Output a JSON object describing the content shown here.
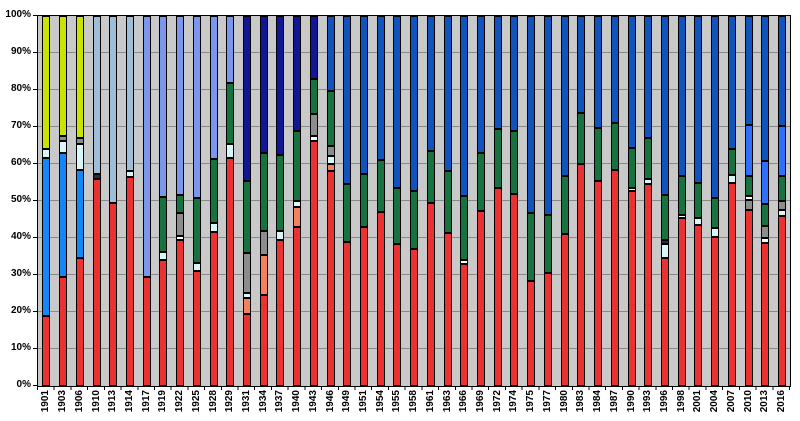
{
  "chart_data": {
    "type": "bar",
    "subtype": "stacked-100-percent-column",
    "title": "",
    "xlabel": "",
    "ylabel": "",
    "ylim": [
      0,
      100
    ],
    "grid": true,
    "legend": "none",
    "y_tick_labels": [
      "0%",
      "10%",
      "20%",
      "30%",
      "40%",
      "50%",
      "60%",
      "70%",
      "80%",
      "90%",
      "100%"
    ],
    "palette": {
      "alp": "#E93231",
      "lng": "#F2815C",
      "ind": "#D9F6F8",
      "wht": "#FFFFFF",
      "oth": "#8C8C8C",
      "drk": "#2B2B45",
      "prot": "#C8E400",
      "ft": "#1486F8",
      "cl": "#9DBED6",
      "nat": "#7A97EE",
      "uap": "#111695",
      "cp": "#177240",
      "lib": "#1153BE",
      "lnp": "#2E6FFB"
    },
    "plot_background": "#C9C9C9",
    "gridline_color": "#8a8a8a",
    "categories": [
      "1901",
      "1903",
      "1906",
      "1910",
      "1913",
      "1914",
      "1917",
      "1919",
      "1922",
      "1925",
      "1928",
      "1929",
      "1931",
      "1934",
      "1937",
      "1940",
      "1943",
      "1946",
      "1949",
      "1951",
      "1954",
      "1955",
      "1958",
      "1961",
      "1963",
      "1966",
      "1969",
      "1972",
      "1974",
      "1975",
      "1977",
      "1980",
      "1983",
      "1984",
      "1987",
      "1990",
      "1993",
      "1996",
      "1998",
      "2001",
      "2004",
      "2007",
      "2010",
      "2013",
      "2016"
    ],
    "bars": [
      [
        [
          "alp",
          19.0
        ],
        [
          "ft",
          42.7
        ],
        [
          "ind",
          2.3
        ],
        [
          "prot",
          36.0
        ]
      ],
      [
        [
          "alp",
          29.5
        ],
        [
          "ft",
          33.6
        ],
        [
          "ind",
          3.1
        ],
        [
          "oth",
          1.4
        ],
        [
          "prot",
          32.4
        ]
      ],
      [
        [
          "alp",
          34.7
        ],
        [
          "ft",
          23.8
        ],
        [
          "ind",
          7.0
        ],
        [
          "oth",
          1.5
        ],
        [
          "prot",
          33.0
        ]
      ],
      [
        [
          "alp",
          56.0
        ],
        [
          "drk",
          1.2
        ],
        [
          "cl",
          42.8
        ]
      ],
      [
        [
          "alp",
          49.5
        ],
        [
          "cl",
          50.5
        ]
      ],
      [
        [
          "alp",
          56.5
        ],
        [
          "ind",
          1.5
        ],
        [
          "cl",
          42.0
        ]
      ],
      [
        [
          "alp",
          29.5
        ],
        [
          "nat",
          70.5
        ]
      ],
      [
        [
          "alp",
          34.0
        ],
        [
          "ind",
          2.2
        ],
        [
          "cp",
          14.8
        ],
        [
          "nat",
          49.0
        ]
      ],
      [
        [
          "alp",
          39.4
        ],
        [
          "wht",
          1.1
        ],
        [
          "oth",
          6.3
        ],
        [
          "cp",
          4.8
        ],
        [
          "nat",
          48.4
        ]
      ],
      [
        [
          "alp",
          31.0
        ],
        [
          "ind",
          2.3
        ],
        [
          "cp",
          17.6
        ],
        [
          "nat",
          49.1
        ]
      ],
      [
        [
          "alp",
          41.5
        ],
        [
          "ind",
          2.5
        ],
        [
          "cp",
          17.3
        ],
        [
          "nat",
          38.7
        ]
      ],
      [
        [
          "alp",
          61.5
        ],
        [
          "ind",
          4.0
        ],
        [
          "cp",
          16.5
        ],
        [
          "nat",
          18.0
        ]
      ],
      [
        [
          "alp",
          19.4
        ],
        [
          "lng",
          4.5
        ],
        [
          "ind",
          1.3
        ],
        [
          "oth",
          10.8
        ],
        [
          "cp",
          19.4
        ],
        [
          "uap",
          44.6
        ]
      ],
      [
        [
          "alp",
          24.5
        ],
        [
          "lng",
          11.0
        ],
        [
          "oth",
          6.5
        ],
        [
          "cp",
          21.0
        ],
        [
          "uap",
          37.0
        ]
      ],
      [
        [
          "alp",
          39.5
        ],
        [
          "ind",
          2.5
        ],
        [
          "cp",
          20.5
        ],
        [
          "uap",
          37.5
        ]
      ],
      [
        [
          "alp",
          43.0
        ],
        [
          "lng",
          5.5
        ],
        [
          "ind",
          1.5
        ],
        [
          "cp",
          19.0
        ],
        [
          "uap",
          31.0
        ]
      ],
      [
        [
          "alp",
          66.3
        ],
        [
          "wht",
          1.3
        ],
        [
          "oth",
          5.8
        ],
        [
          "cp",
          9.5
        ],
        [
          "uap",
          17.1
        ]
      ],
      [
        [
          "alp",
          58.1
        ],
        [
          "lng",
          1.9
        ],
        [
          "ind",
          2.2
        ],
        [
          "oth",
          2.8
        ],
        [
          "cp",
          14.8
        ],
        [
          "lib",
          20.2
        ]
      ],
      [
        [
          "alp",
          38.8
        ],
        [
          "cp",
          15.7
        ],
        [
          "lib",
          45.5
        ]
      ],
      [
        [
          "alp",
          43.0
        ],
        [
          "cp",
          14.2
        ],
        [
          "lib",
          42.8
        ]
      ],
      [
        [
          "alp",
          47.0
        ],
        [
          "cp",
          14.0
        ],
        [
          "lib",
          39.0
        ]
      ],
      [
        [
          "alp",
          38.5
        ],
        [
          "cp",
          15.1
        ],
        [
          "lib",
          46.4
        ]
      ],
      [
        [
          "alp",
          37.0
        ],
        [
          "cp",
          15.7
        ],
        [
          "lib",
          47.3
        ]
      ],
      [
        [
          "alp",
          49.4
        ],
        [
          "cp",
          14.1
        ],
        [
          "lib",
          36.5
        ]
      ],
      [
        [
          "alp",
          41.3
        ],
        [
          "cp",
          16.8
        ],
        [
          "lib",
          41.9
        ]
      ],
      [
        [
          "alp",
          33.1
        ],
        [
          "wht",
          1.0
        ],
        [
          "cp",
          17.3
        ],
        [
          "lib",
          48.6
        ]
      ],
      [
        [
          "alp",
          47.3
        ],
        [
          "cp",
          15.8
        ],
        [
          "lib",
          36.9
        ]
      ],
      [
        [
          "alp",
          53.6
        ],
        [
          "cp",
          15.8
        ],
        [
          "lib",
          30.6
        ]
      ],
      [
        [
          "alp",
          52.0
        ],
        [
          "cp",
          16.9
        ],
        [
          "lib",
          31.1
        ]
      ],
      [
        [
          "alp",
          28.4
        ],
        [
          "cp",
          18.3
        ],
        [
          "lib",
          53.3
        ]
      ],
      [
        [
          "alp",
          30.6
        ],
        [
          "cp",
          15.5
        ],
        [
          "lib",
          53.9
        ]
      ],
      [
        [
          "alp",
          41.0
        ],
        [
          "cp",
          15.8
        ],
        [
          "lib",
          43.2
        ]
      ],
      [
        [
          "alp",
          60.0
        ],
        [
          "cp",
          13.7
        ],
        [
          "lib",
          26.3
        ]
      ],
      [
        [
          "alp",
          55.4
        ],
        [
          "cp",
          14.4
        ],
        [
          "lib",
          30.2
        ]
      ],
      [
        [
          "alp",
          58.4
        ],
        [
          "cp",
          12.6
        ],
        [
          "lib",
          29.0
        ]
      ],
      [
        [
          "alp",
          52.7
        ],
        [
          "ind",
          0.9
        ],
        [
          "cp",
          10.6
        ],
        [
          "lib",
          35.8
        ]
      ],
      [
        [
          "alp",
          54.5
        ],
        [
          "ind",
          1.4
        ],
        [
          "cp",
          11.2
        ],
        [
          "lib",
          32.9
        ]
      ],
      [
        [
          "alp",
          34.5
        ],
        [
          "ind",
          4.0
        ],
        [
          "drk",
          1.1
        ],
        [
          "cp",
          11.9
        ],
        [
          "lib",
          48.5
        ]
      ],
      [
        [
          "alp",
          45.3
        ],
        [
          "wht",
          1.0
        ],
        [
          "cp",
          10.5
        ],
        [
          "lib",
          43.2
        ]
      ],
      [
        [
          "alp",
          43.5
        ],
        [
          "ind",
          2.0
        ],
        [
          "cp",
          9.5
        ],
        [
          "lib",
          45.0
        ]
      ],
      [
        [
          "alp",
          40.3
        ],
        [
          "ind",
          2.5
        ],
        [
          "cp",
          8.1
        ],
        [
          "lib",
          49.1
        ]
      ],
      [
        [
          "alp",
          55.0
        ],
        [
          "ind",
          1.9
        ],
        [
          "cp",
          7.1
        ],
        [
          "lib",
          36.0
        ]
      ],
      [
        [
          "alp",
          47.7
        ],
        [
          "oth",
          2.6
        ],
        [
          "wht",
          1.0
        ],
        [
          "cp",
          5.6
        ],
        [
          "lnp",
          13.6
        ],
        [
          "lib",
          29.5
        ]
      ],
      [
        [
          "alp",
          38.7
        ],
        [
          "wht",
          1.2
        ],
        [
          "oth",
          3.3
        ],
        [
          "cp",
          5.9
        ],
        [
          "lnp",
          11.7
        ],
        [
          "lib",
          39.2
        ]
      ],
      [
        [
          "alp",
          46.0
        ],
        [
          "ind",
          1.5
        ],
        [
          "oth",
          2.5
        ],
        [
          "cp",
          6.8
        ],
        [
          "lnp",
          13.5
        ],
        [
          "lib",
          29.7
        ]
      ]
    ]
  }
}
